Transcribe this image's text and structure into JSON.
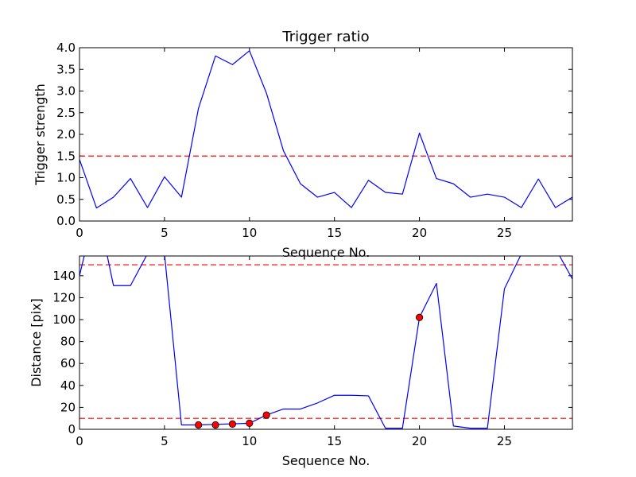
{
  "chart_data": [
    {
      "type": "line",
      "title": "Trigger ratio",
      "xlabel": "Sequence No.",
      "ylabel": "Trigger strength",
      "xlim": [
        0,
        29
      ],
      "ylim": [
        0,
        4.0
      ],
      "xticks": [
        0,
        5,
        10,
        15,
        20,
        25
      ],
      "xtick_labels": [
        "0",
        "5",
        "10",
        "15",
        "20",
        "25"
      ],
      "yticks": [
        0,
        0.5,
        1,
        1.5,
        2,
        2.5,
        3,
        3.5,
        4
      ],
      "ytick_labels": [
        "0.0",
        "0.5",
        "1.0",
        "1.5",
        "2.0",
        "2.5",
        "3.0",
        "3.5",
        "4.0"
      ],
      "grid": false,
      "x": [
        0,
        1,
        2,
        3,
        4,
        5,
        6,
        7,
        8,
        9,
        10,
        11,
        12,
        13,
        14,
        15,
        16,
        17,
        18,
        19,
        20,
        21,
        22,
        23,
        24,
        25,
        26,
        27,
        28,
        29
      ],
      "series": [
        {
          "color": "#0000ff",
          "values": [
            1.42,
            0.3,
            0.55,
            0.98,
            0.31,
            1.02,
            0.55,
            2.6,
            3.81,
            3.61,
            3.93,
            2.95,
            1.62,
            0.86,
            0.55,
            0.66,
            0.31,
            0.94,
            0.66,
            0.62,
            2.03,
            0.98,
            0.86,
            0.55,
            0.62,
            0.55,
            0.31,
            0.97,
            0.31,
            0.55
          ]
        }
      ],
      "hlines": [
        {
          "y": 1.5,
          "color": "#ff0000",
          "style": "dashed"
        }
      ],
      "markers": []
    },
    {
      "type": "line",
      "title": "",
      "xlabel": "Sequence No.",
      "ylabel": "Distance [pix]",
      "xlim": [
        0,
        29
      ],
      "ylim": [
        0,
        158
      ],
      "xticks": [
        0,
        5,
        10,
        15,
        20,
        25
      ],
      "xtick_labels": [
        "0",
        "5",
        "10",
        "15",
        "20",
        "25"
      ],
      "yticks": [
        0,
        20,
        40,
        60,
        80,
        100,
        120,
        140
      ],
      "ytick_labels": [
        "0",
        "20",
        "40",
        "60",
        "80",
        "100",
        "120",
        "140"
      ],
      "grid": false,
      "x": [
        0,
        1,
        2,
        3,
        4,
        5,
        6,
        7,
        8,
        9,
        10,
        11,
        12,
        13,
        14,
        15,
        16,
        17,
        18,
        19,
        20,
        21,
        22,
        23,
        24,
        25,
        26,
        27,
        28,
        29
      ],
      "series": [
        {
          "color": "#0000ff",
          "values": [
            140,
            205,
            131,
            131,
            160,
            160,
            4,
            4,
            4.5,
            5,
            5.5,
            13,
            18.5,
            18.5,
            24,
            31,
            31,
            30.5,
            1,
            1,
            102,
            133,
            3,
            1,
            1,
            128,
            160,
            200,
            165,
            137
          ]
        }
      ],
      "hlines": [
        {
          "y": 150,
          "color": "#ff0000",
          "style": "dashed"
        },
        {
          "y": 10,
          "color": "#ff0000",
          "style": "dashed"
        }
      ],
      "markers": [
        {
          "x": 7,
          "y": 4
        },
        {
          "x": 8,
          "y": 4
        },
        {
          "x": 9,
          "y": 4.8
        },
        {
          "x": 10,
          "y": 5.5
        },
        {
          "x": 11,
          "y": 13
        },
        {
          "x": 20,
          "y": 102
        }
      ]
    }
  ]
}
